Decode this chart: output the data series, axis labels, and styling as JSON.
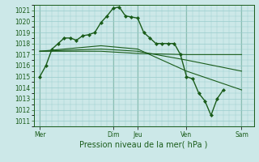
{
  "background_color": "#cce8e8",
  "grid_color": "#99cccc",
  "line_color": "#1a5c1a",
  "marker_color": "#1a5c1a",
  "xlabel": "Pression niveau de la mer( hPa )",
  "ylim": [
    1010.5,
    1021.5
  ],
  "yticks": [
    1011,
    1012,
    1013,
    1014,
    1015,
    1016,
    1017,
    1018,
    1019,
    1020,
    1021
  ],
  "xlim": [
    0,
    72
  ],
  "xtick_positions": [
    2,
    26,
    34,
    50,
    68
  ],
  "xtick_labels": [
    "Mer",
    "Dim",
    "Jeu",
    "Ven",
    "Sam"
  ],
  "vline_positions": [
    2,
    26,
    34,
    50,
    68
  ],
  "series_main": {
    "x": [
      2,
      4,
      6,
      8,
      10,
      12,
      14,
      16,
      18,
      20,
      22,
      24,
      26,
      28,
      30,
      32,
      34,
      36,
      38,
      40,
      42,
      44,
      46,
      48,
      50,
      52,
      54,
      56,
      58,
      60,
      62
    ],
    "y": [
      1015.0,
      1016.0,
      1017.5,
      1018.0,
      1018.5,
      1018.5,
      1018.3,
      1018.7,
      1018.8,
      1019.0,
      1019.9,
      1020.5,
      1021.2,
      1021.3,
      1020.5,
      1020.4,
      1020.3,
      1019.0,
      1018.5,
      1018.0,
      1018.0,
      1018.0,
      1018.0,
      1017.0,
      1015.0,
      1014.8,
      1013.5,
      1012.8,
      1011.5,
      1013.0,
      1013.8
    ]
  },
  "series_trend1": {
    "x": [
      2,
      22,
      34,
      50,
      68
    ],
    "y": [
      1017.3,
      1017.3,
      1017.1,
      1017.0,
      1017.0
    ]
  },
  "series_trend2": {
    "x": [
      2,
      22,
      34,
      50,
      68
    ],
    "y": [
      1017.3,
      1017.5,
      1017.3,
      1016.5,
      1015.5
    ]
  },
  "series_trend3": {
    "x": [
      2,
      22,
      34,
      50,
      68
    ],
    "y": [
      1017.3,
      1017.8,
      1017.5,
      1015.5,
      1013.8
    ]
  },
  "ylabel_fontsize": 5.5,
  "xlabel_fontsize": 7.0,
  "tick_fontsize": 5.5
}
